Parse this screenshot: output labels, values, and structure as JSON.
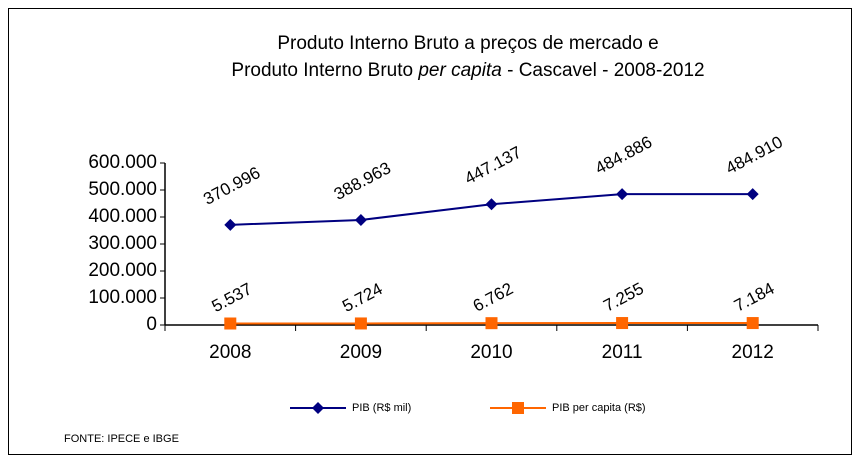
{
  "chart_data": {
    "type": "line",
    "title": [
      "Produto Interno Bruto a preços de mercado e",
      [
        "Produto Interno Bruto ",
        "per capita",
        " - Cascavel - 2008-2012"
      ]
    ],
    "categories": [
      "2008",
      "2009",
      "2010",
      "2011",
      "2012"
    ],
    "series": [
      {
        "name": "PIB (R$ mil)",
        "color": "#000080",
        "marker": "diamond",
        "values": [
          370996,
          388963,
          447137,
          484886,
          484910
        ],
        "value_labels": [
          "370.996",
          "388.963",
          "447.137",
          "484.886",
          "484.910"
        ]
      },
      {
        "name": "PIB per capita (R$)",
        "color": "#ff6600",
        "marker": "square",
        "values": [
          5537,
          5724,
          6762,
          7255,
          7184
        ],
        "value_labels": [
          "5.537",
          "5.724",
          "6.762",
          "7.255",
          "7.184"
        ]
      }
    ],
    "ylim": [
      0,
      600000
    ],
    "yticks": [
      0,
      {
        "value": 100000,
        "label": "100.000"
      },
      {
        "value": 200000,
        "label": "200.000"
      },
      {
        "value": 300000,
        "label": "300.000"
      },
      {
        "value": 400000,
        "label": "400.000"
      },
      {
        "value": 500000,
        "label": "500.000"
      },
      {
        "value": 600000,
        "label": "600.000"
      }
    ],
    "legend": "bottom",
    "source": "FONTE: IPECE e IBGE"
  }
}
